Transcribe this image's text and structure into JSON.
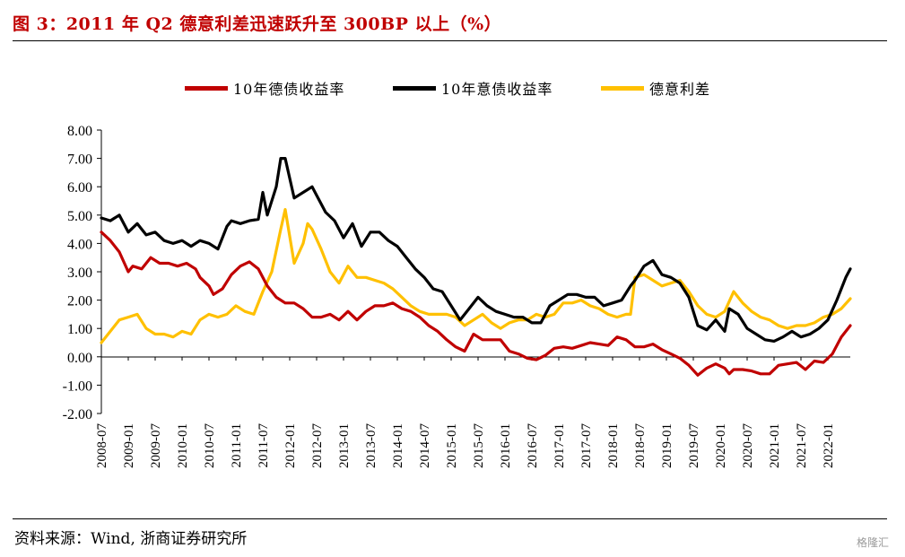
{
  "header": {
    "title": "图 3：2011 年 Q2 德意利差迅速跃升至 300BP 以上（%）"
  },
  "footer": {
    "source": "资料来源：Wind, 浙商证券研究所",
    "watermark": "格隆汇"
  },
  "colors": {
    "german": "#c00000",
    "italian": "#000000",
    "spread": "#ffc000",
    "title": "#c00000"
  },
  "chart_data": {
    "type": "line",
    "title": "",
    "xlabel": "",
    "ylabel": "",
    "ylim": [
      -2,
      8
    ],
    "grid": false,
    "legend_position": "top",
    "y_ticks": [
      "8.00",
      "7.00",
      "6.00",
      "5.00",
      "4.00",
      "3.00",
      "2.00",
      "1.00",
      "0.00",
      "-1.00",
      "-2.00"
    ],
    "x_ticks": [
      "2008-07",
      "2009-01",
      "2009-07",
      "2010-01",
      "2010-07",
      "2011-01",
      "2011-07",
      "2012-01",
      "2012-07",
      "2013-01",
      "2013-07",
      "2014-01",
      "2014-07",
      "2015-01",
      "2015-07",
      "2016-01",
      "2016-07",
      "2017-01",
      "2017-07",
      "2018-01",
      "2018-07",
      "2019-01",
      "2019-07",
      "2020-01",
      "2020-07",
      "2021-01",
      "2021-07",
      "2022-01"
    ],
    "x_range": [
      "2008-07",
      "2022-06"
    ],
    "series": [
      {
        "name": "10年德债收益率",
        "color": "#c00000",
        "x": [
          "2008-07",
          "2008-09",
          "2008-11",
          "2009-01",
          "2009-02",
          "2009-04",
          "2009-06",
          "2009-08",
          "2009-10",
          "2009-12",
          "2010-02",
          "2010-04",
          "2010-05",
          "2010-07",
          "2010-08",
          "2010-10",
          "2010-12",
          "2011-02",
          "2011-04",
          "2011-06",
          "2011-08",
          "2011-10",
          "2011-12",
          "2012-02",
          "2012-04",
          "2012-06",
          "2012-08",
          "2012-10",
          "2012-12",
          "2013-02",
          "2013-04",
          "2013-06",
          "2013-08",
          "2013-10",
          "2013-12",
          "2014-02",
          "2014-04",
          "2014-06",
          "2014-08",
          "2014-10",
          "2014-12",
          "2015-02",
          "2015-04",
          "2015-06",
          "2015-08",
          "2015-10",
          "2015-12",
          "2016-02",
          "2016-04",
          "2016-06",
          "2016-08",
          "2016-10",
          "2016-12",
          "2017-02",
          "2017-04",
          "2017-06",
          "2017-08",
          "2017-10",
          "2017-12",
          "2018-02",
          "2018-04",
          "2018-06",
          "2018-08",
          "2018-10",
          "2018-12",
          "2019-02",
          "2019-04",
          "2019-06",
          "2019-08",
          "2019-10",
          "2019-12",
          "2020-02",
          "2020-03",
          "2020-04",
          "2020-06",
          "2020-08",
          "2020-10",
          "2020-12",
          "2021-02",
          "2021-04",
          "2021-06",
          "2021-08",
          "2021-10",
          "2021-12",
          "2022-02",
          "2022-04",
          "2022-06"
        ],
        "values": [
          4.4,
          4.1,
          3.7,
          3.0,
          3.2,
          3.1,
          3.5,
          3.3,
          3.3,
          3.2,
          3.3,
          3.1,
          2.8,
          2.5,
          2.2,
          2.4,
          2.9,
          3.2,
          3.35,
          3.1,
          2.5,
          2.1,
          1.9,
          1.9,
          1.7,
          1.4,
          1.4,
          1.5,
          1.3,
          1.6,
          1.3,
          1.6,
          1.8,
          1.8,
          1.9,
          1.7,
          1.6,
          1.4,
          1.1,
          0.9,
          0.6,
          0.35,
          0.2,
          0.8,
          0.6,
          0.6,
          0.6,
          0.2,
          0.1,
          -0.05,
          -0.1,
          0.05,
          0.3,
          0.35,
          0.3,
          0.4,
          0.5,
          0.45,
          0.4,
          0.7,
          0.6,
          0.35,
          0.35,
          0.45,
          0.25,
          0.1,
          -0.05,
          -0.3,
          -0.65,
          -0.4,
          -0.25,
          -0.4,
          -0.6,
          -0.45,
          -0.45,
          -0.5,
          -0.6,
          -0.6,
          -0.3,
          -0.25,
          -0.2,
          -0.45,
          -0.15,
          -0.2,
          0.1,
          0.7,
          1.1
        ]
      },
      {
        "name": "10年意债收益率",
        "color": "#000000",
        "x": [
          "2008-07",
          "2008-09",
          "2008-11",
          "2009-01",
          "2009-03",
          "2009-05",
          "2009-07",
          "2009-09",
          "2009-11",
          "2010-01",
          "2010-03",
          "2010-05",
          "2010-07",
          "2010-09",
          "2010-11",
          "2010-12",
          "2011-02",
          "2011-04",
          "2011-06",
          "2011-07",
          "2011-08",
          "2011-10",
          "2011-11",
          "2011-12",
          "2012-02",
          "2012-04",
          "2012-05",
          "2012-06",
          "2012-07",
          "2012-09",
          "2012-11",
          "2013-01",
          "2013-03",
          "2013-05",
          "2013-07",
          "2013-09",
          "2013-11",
          "2014-01",
          "2014-03",
          "2014-05",
          "2014-07",
          "2014-09",
          "2014-11",
          "2015-01",
          "2015-03",
          "2015-05",
          "2015-07",
          "2015-09",
          "2015-11",
          "2016-01",
          "2016-03",
          "2016-05",
          "2016-07",
          "2016-09",
          "2016-11",
          "2017-01",
          "2017-03",
          "2017-05",
          "2017-07",
          "2017-09",
          "2017-11",
          "2018-01",
          "2018-03",
          "2018-05",
          "2018-06",
          "2018-08",
          "2018-10",
          "2018-12",
          "2019-02",
          "2019-04",
          "2019-06",
          "2019-08",
          "2019-10",
          "2019-12",
          "2020-02",
          "2020-03",
          "2020-05",
          "2020-07",
          "2020-09",
          "2020-11",
          "2021-01",
          "2021-03",
          "2021-05",
          "2021-07",
          "2021-09",
          "2021-11",
          "2022-01",
          "2022-03",
          "2022-05",
          "2022-06"
        ],
        "values": [
          4.9,
          4.8,
          5.0,
          4.4,
          4.7,
          4.3,
          4.4,
          4.1,
          4.0,
          4.1,
          3.9,
          4.1,
          4.0,
          3.8,
          4.6,
          4.8,
          4.7,
          4.8,
          4.85,
          5.8,
          5.0,
          6.0,
          7.0,
          7.0,
          5.6,
          5.8,
          5.9,
          6.0,
          5.7,
          5.1,
          4.8,
          4.2,
          4.7,
          3.9,
          4.4,
          4.4,
          4.1,
          3.9,
          3.5,
          3.1,
          2.8,
          2.4,
          2.3,
          1.8,
          1.3,
          1.7,
          2.1,
          1.8,
          1.6,
          1.5,
          1.4,
          1.4,
          1.2,
          1.2,
          1.8,
          2.0,
          2.2,
          2.2,
          2.1,
          2.1,
          1.8,
          1.9,
          2.0,
          2.5,
          2.7,
          3.2,
          3.4,
          2.9,
          2.8,
          2.6,
          2.1,
          1.1,
          0.95,
          1.3,
          0.9,
          1.7,
          1.5,
          1.0,
          0.8,
          0.6,
          0.55,
          0.7,
          0.9,
          0.7,
          0.8,
          1.0,
          1.3,
          2.0,
          2.8,
          3.1
        ]
      },
      {
        "name": "德意利差",
        "color": "#ffc000",
        "x": [
          "2008-07",
          "2008-09",
          "2008-11",
          "2009-01",
          "2009-03",
          "2009-05",
          "2009-07",
          "2009-09",
          "2009-11",
          "2010-01",
          "2010-03",
          "2010-05",
          "2010-07",
          "2010-09",
          "2010-11",
          "2011-01",
          "2011-03",
          "2011-05",
          "2011-07",
          "2011-09",
          "2011-11",
          "2011-12",
          "2012-02",
          "2012-04",
          "2012-05",
          "2012-06",
          "2012-08",
          "2012-10",
          "2012-12",
          "2013-02",
          "2013-04",
          "2013-06",
          "2013-08",
          "2013-10",
          "2013-12",
          "2014-02",
          "2014-04",
          "2014-06",
          "2014-08",
          "2014-10",
          "2014-12",
          "2015-02",
          "2015-04",
          "2015-06",
          "2015-08",
          "2015-10",
          "2015-12",
          "2016-02",
          "2016-04",
          "2016-06",
          "2016-08",
          "2016-10",
          "2016-12",
          "2017-02",
          "2017-04",
          "2017-06",
          "2017-08",
          "2017-10",
          "2017-12",
          "2018-02",
          "2018-04",
          "2018-05",
          "2018-06",
          "2018-08",
          "2018-10",
          "2018-12",
          "2019-02",
          "2019-04",
          "2019-06",
          "2019-08",
          "2019-10",
          "2019-12",
          "2020-02",
          "2020-04",
          "2020-06",
          "2020-08",
          "2020-10",
          "2020-12",
          "2021-02",
          "2021-04",
          "2021-06",
          "2021-08",
          "2021-10",
          "2021-12",
          "2022-02",
          "2022-04",
          "2022-06"
        ],
        "values": [
          0.5,
          0.9,
          1.3,
          1.4,
          1.5,
          1.0,
          0.8,
          0.8,
          0.7,
          0.9,
          0.8,
          1.3,
          1.5,
          1.4,
          1.5,
          1.8,
          1.6,
          1.5,
          2.3,
          3.0,
          4.5,
          5.2,
          3.3,
          4.0,
          4.7,
          4.5,
          3.8,
          3.0,
          2.6,
          3.2,
          2.8,
          2.8,
          2.7,
          2.6,
          2.4,
          2.1,
          1.8,
          1.6,
          1.5,
          1.5,
          1.5,
          1.4,
          1.1,
          1.3,
          1.5,
          1.2,
          1.0,
          1.2,
          1.3,
          1.3,
          1.5,
          1.4,
          1.5,
          1.9,
          1.9,
          2.0,
          1.8,
          1.7,
          1.5,
          1.4,
          1.5,
          1.5,
          2.8,
          2.9,
          2.7,
          2.5,
          2.6,
          2.7,
          2.3,
          1.8,
          1.5,
          1.4,
          1.6,
          2.3,
          1.9,
          1.6,
          1.4,
          1.3,
          1.1,
          1.0,
          1.1,
          1.1,
          1.2,
          1.4,
          1.5,
          1.7,
          2.05
        ]
      }
    ]
  }
}
